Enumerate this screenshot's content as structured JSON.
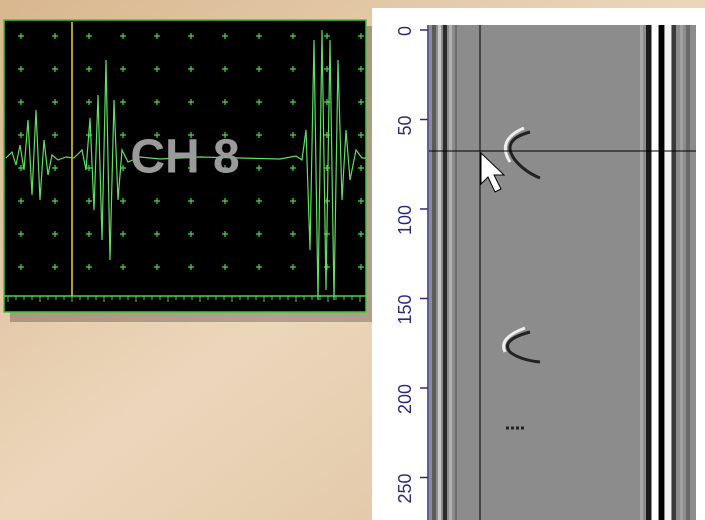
{
  "a_scan": {
    "label": "CH 8"
  },
  "b_scan": {
    "yticks": [
      0,
      50,
      100,
      150,
      200,
      250
    ]
  }
}
